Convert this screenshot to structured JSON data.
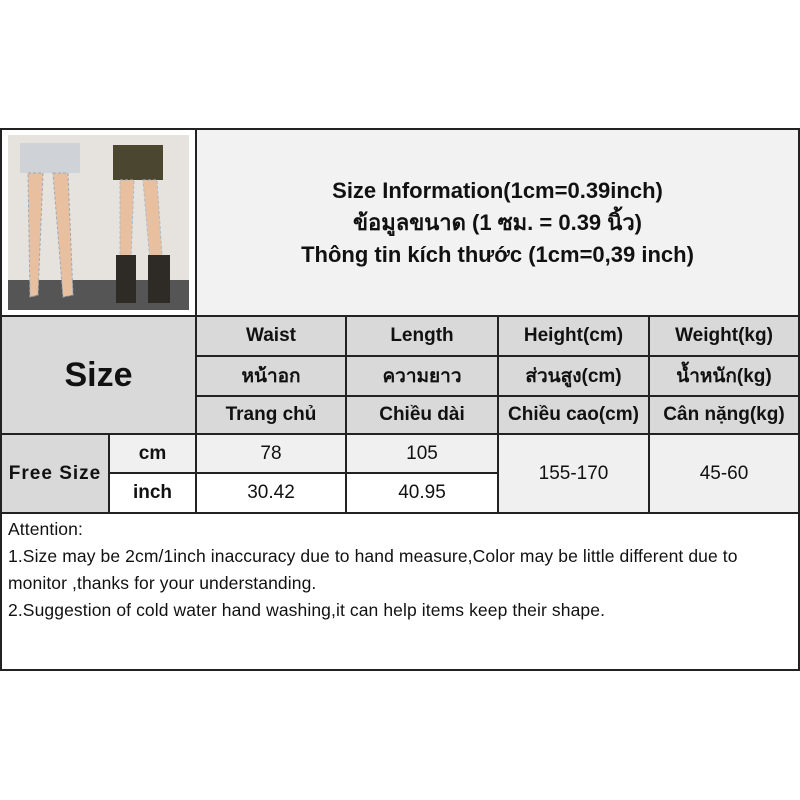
{
  "header": {
    "line1": "Size Information(1cm=0.39inch)",
    "line2": "ข้อมูลขนาด (1 ซม. = 0.39 นิ้ว)",
    "line3": "Thông tin kích thước (1cm=0,39 inch)"
  },
  "size_label": "Size",
  "columns": [
    {
      "en": "Waist",
      "th": "หน้าอก",
      "vi": "Trang chủ"
    },
    {
      "en": "Length",
      "th": "ความยาว",
      "vi": "Chiều dài"
    },
    {
      "en": "Height(cm)",
      "th": "ส่วนสูง(cm)",
      "vi": "Chiều cao(cm)"
    },
    {
      "en": "Weight(kg)",
      "th": "น้ำหนัก(kg)",
      "vi": "Cân nặng(kg)"
    }
  ],
  "rows": {
    "size": "Free Size",
    "cm": {
      "unit": "cm",
      "waist": "78",
      "length": "105"
    },
    "inch": {
      "unit": "inch",
      "waist": "30.42",
      "length": "40.95"
    },
    "height": "155-170",
    "weight": "45-60"
  },
  "attention": {
    "title": "Attention:",
    "line1": "1.Size may be 2cm/1inch inaccuracy due to hand measure,Color may be little different due to monitor ,thanks for your understanding.",
    "line2": "2.Suggestion of cold water hand washing,it can help items keep their shape."
  }
}
